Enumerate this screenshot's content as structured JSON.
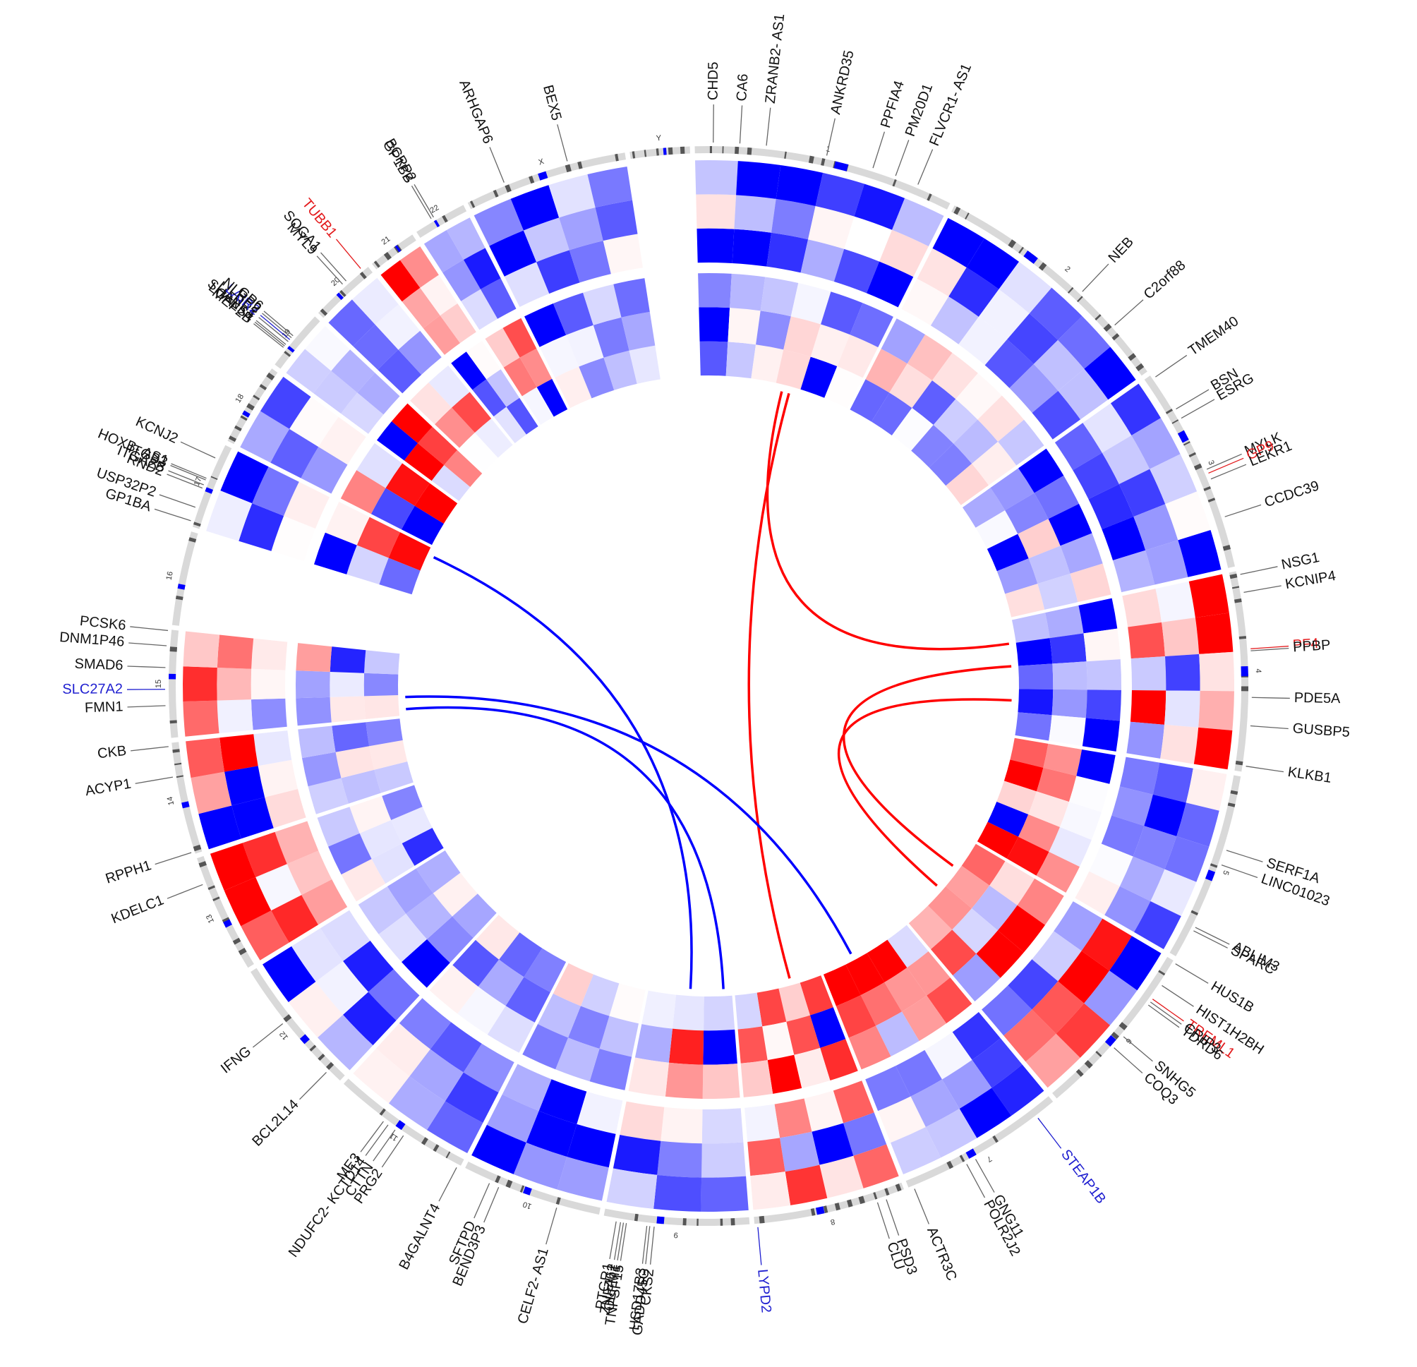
{
  "colors": {
    "up": "#ff0000",
    "down": "#0000ff",
    "neutral": "#ffffff",
    "label_default": "#111111",
    "label_up": "#e31a1c",
    "label_down": "#1f1fd0",
    "ideogram_band_light": "#d9d9d9",
    "ideogram_band_dark": "#555555",
    "ideogram_centromere": "#0000ff"
  },
  "chromosomes": [
    {
      "name": "1",
      "size": 249
    },
    {
      "name": "2",
      "size": 242
    },
    {
      "name": "3",
      "size": 198
    },
    {
      "name": "4",
      "size": 190
    },
    {
      "name": "5",
      "size": 181
    },
    {
      "name": "6",
      "size": 171
    },
    {
      "name": "7",
      "size": 159
    },
    {
      "name": "8",
      "size": 145
    },
    {
      "name": "9",
      "size": 138
    },
    {
      "name": "10",
      "size": 134
    },
    {
      "name": "11",
      "size": 135
    },
    {
      "name": "12",
      "size": 133
    },
    {
      "name": "13",
      "size": 114
    },
    {
      "name": "14",
      "size": 107
    },
    {
      "name": "15",
      "size": 102
    },
    {
      "name": "16",
      "size": 90
    },
    {
      "name": "17",
      "size": 83
    },
    {
      "name": "18",
      "size": 80
    },
    {
      "name": "19",
      "size": 59
    },
    {
      "name": "20",
      "size": 64
    },
    {
      "name": "21",
      "size": 47
    },
    {
      "name": "22",
      "size": 51
    },
    {
      "name": "X",
      "size": 156
    },
    {
      "name": "Y",
      "size": 57
    }
  ],
  "gene_labels": [
    {
      "text": "CHD5",
      "chr": "1",
      "pos": 0.07,
      "status": "none"
    },
    {
      "text": "CA6",
      "chr": "1",
      "pos": 0.17,
      "status": "none"
    },
    {
      "text": "ZRANB2- AS1",
      "chr": "1",
      "pos": 0.27,
      "status": "none"
    },
    {
      "text": "ANKRD35",
      "chr": "1",
      "pos": 0.5,
      "status": "none"
    },
    {
      "text": "PPFIA4",
      "chr": "1",
      "pos": 0.68,
      "status": "none"
    },
    {
      "text": "PM20D1",
      "chr": "1",
      "pos": 0.77,
      "status": "none"
    },
    {
      "text": "FLVCR1- AS1",
      "chr": "1",
      "pos": 0.86,
      "status": "none"
    },
    {
      "text": "NEB",
      "chr": "2",
      "pos": 0.6,
      "status": "none"
    },
    {
      "text": "C2orf88",
      "chr": "2",
      "pos": 0.78,
      "status": "none"
    },
    {
      "text": "TMEM40",
      "chr": "3",
      "pos": 0.02,
      "status": "none"
    },
    {
      "text": "BSN",
      "chr": "3",
      "pos": 0.2,
      "status": "none"
    },
    {
      "text": "ESRG",
      "chr": "3",
      "pos": 0.25,
      "status": "none"
    },
    {
      "text": "MYLK",
      "chr": "3",
      "pos": 0.52,
      "status": "none"
    },
    {
      "text": "GP9",
      "chr": "3",
      "pos": 0.54,
      "status": "up"
    },
    {
      "text": "LEKR1",
      "chr": "3",
      "pos": 0.57,
      "status": "none"
    },
    {
      "text": "CCDC39",
      "chr": "3",
      "pos": 0.76,
      "status": "none"
    },
    {
      "text": "NSG1",
      "chr": "4",
      "pos": 0.02,
      "status": "none"
    },
    {
      "text": "KCNIP4",
      "chr": "4",
      "pos": 0.11,
      "status": "none"
    },
    {
      "text": "PF4",
      "chr": "4",
      "pos": 0.39,
      "status": "up"
    },
    {
      "text": "PPBP",
      "chr": "4",
      "pos": 0.4,
      "status": "none"
    },
    {
      "text": "PDE5A",
      "chr": "4",
      "pos": 0.63,
      "status": "none"
    },
    {
      "text": "GUSBP5",
      "chr": "4",
      "pos": 0.77,
      "status": "none"
    },
    {
      "text": "KLKB1",
      "chr": "4",
      "pos": 0.97,
      "status": "none"
    },
    {
      "text": "SERF1A",
      "chr": "5",
      "pos": 0.39,
      "status": "none"
    },
    {
      "text": "LINC01023",
      "chr": "5",
      "pos": 0.47,
      "status": "none"
    },
    {
      "text": "ABLIM3",
      "chr": "5",
      "pos": 0.82,
      "status": "none"
    },
    {
      "text": "SPARC",
      "chr": "5",
      "pos": 0.84,
      "status": "none"
    },
    {
      "text": "HUS1B",
      "chr": "6",
      "pos": 0.01,
      "status": "none"
    },
    {
      "text": "HIST1H2BH",
      "chr": "6",
      "pos": 0.15,
      "status": "none"
    },
    {
      "text": "TREML1",
      "chr": "6",
      "pos": 0.24,
      "status": "up"
    },
    {
      "text": "CRIP3",
      "chr": "6",
      "pos": 0.26,
      "status": "none"
    },
    {
      "text": "TDRD6",
      "chr": "6",
      "pos": 0.28,
      "status": "none"
    },
    {
      "text": "SNHG5",
      "chr": "6",
      "pos": 0.5,
      "status": "none"
    },
    {
      "text": "COQ3",
      "chr": "6",
      "pos": 0.58,
      "status": "none"
    },
    {
      "text": "STEAP1B",
      "chr": "7",
      "pos": 0.13,
      "status": "down"
    },
    {
      "text": "GNG11",
      "chr": "7",
      "pos": 0.57,
      "status": "none"
    },
    {
      "text": "POLR2J2",
      "chr": "7",
      "pos": 0.63,
      "status": "none"
    },
    {
      "text": "ACTR3C",
      "chr": "7",
      "pos": 0.97,
      "status": "none"
    },
    {
      "text": "PSD3",
      "chr": "8",
      "pos": 0.13,
      "status": "none"
    },
    {
      "text": "CLU",
      "chr": "8",
      "pos": 0.19,
      "status": "none"
    },
    {
      "text": "LYPD2",
      "chr": "8",
      "pos": 0.98,
      "status": "down"
    },
    {
      "text": "CKS2",
      "chr": "9",
      "pos": 0.65,
      "status": "none"
    },
    {
      "text": "GADD45G",
      "chr": "9",
      "pos": 0.68,
      "status": "none"
    },
    {
      "text": "HSD17B3",
      "chr": "9",
      "pos": 0.7,
      "status": "none"
    },
    {
      "text": "TNFSF15",
      "chr": "9",
      "pos": 0.84,
      "status": "none"
    },
    {
      "text": "OLFM1",
      "chr": "9",
      "pos": 0.86,
      "status": "none"
    },
    {
      "text": "ZNF462",
      "chr": "9",
      "pos": 0.88,
      "status": "none"
    },
    {
      "text": "PTGR1",
      "chr": "9",
      "pos": 0.91,
      "status": "none"
    },
    {
      "text": "CELF2- AS1",
      "chr": "10",
      "pos": 0.3,
      "status": "none"
    },
    {
      "text": "BEND3P3",
      "chr": "10",
      "pos": 0.73,
      "status": "none"
    },
    {
      "text": "SFTPD",
      "chr": "10",
      "pos": 0.8,
      "status": "none"
    },
    {
      "text": "B4GALNT4",
      "chr": "11",
      "pos": 0.02,
      "status": "none"
    },
    {
      "text": "PRG2",
      "chr": "11",
      "pos": 0.45,
      "status": "none"
    },
    {
      "text": "CTTN",
      "chr": "11",
      "pos": 0.52,
      "status": "none"
    },
    {
      "text": "NDUFC2- KCTD14",
      "chr": "11",
      "pos": 0.58,
      "status": "none"
    },
    {
      "text": "ME3",
      "chr": "11",
      "pos": 0.62,
      "status": "none"
    },
    {
      "text": "BCL2L14",
      "chr": "12",
      "pos": 0.11,
      "status": "none"
    },
    {
      "text": "IFNG",
      "chr": "12",
      "pos": 0.57,
      "status": "none"
    },
    {
      "text": "KDELC1",
      "chr": "13",
      "pos": 0.78,
      "status": "none"
    },
    {
      "text": "RPPH1",
      "chr": "14",
      "pos": 0.02,
      "status": "none"
    },
    {
      "text": "ACYP1",
      "chr": "14",
      "pos": 0.7,
      "status": "none"
    },
    {
      "text": "CKB",
      "chr": "14",
      "pos": 0.97,
      "status": "none"
    },
    {
      "text": "FMN1",
      "chr": "15",
      "pos": 0.3,
      "status": "none"
    },
    {
      "text": "SLC27A2",
      "chr": "15",
      "pos": 0.45,
      "status": "down"
    },
    {
      "text": "SMAD6",
      "chr": "15",
      "pos": 0.65,
      "status": "none"
    },
    {
      "text": "DNM1P46",
      "chr": "15",
      "pos": 0.85,
      "status": "none"
    },
    {
      "text": "PCSK6",
      "chr": "15",
      "pos": 0.99,
      "status": "none"
    },
    {
      "text": "GP1BA",
      "chr": "17",
      "pos": 0.06,
      "status": "none"
    },
    {
      "text": "USP32P2",
      "chr": "17",
      "pos": 0.22,
      "status": "none"
    },
    {
      "text": "RND2",
      "chr": "17",
      "pos": 0.45,
      "status": "none"
    },
    {
      "text": "ITGA2B",
      "chr": "17",
      "pos": 0.49,
      "status": "none"
    },
    {
      "text": "ITGB3",
      "chr": "17",
      "pos": 0.55,
      "status": "none"
    },
    {
      "text": "HOXB- AS1",
      "chr": "17",
      "pos": 0.57,
      "status": "none"
    },
    {
      "text": "KCNJ2",
      "chr": "17",
      "pos": 0.82,
      "status": "none"
    },
    {
      "text": "MEF2B",
      "chr": "19",
      "pos": 0.3,
      "status": "none"
    },
    {
      "text": "LGALS4",
      "chr": "19",
      "pos": 0.33,
      "status": "none"
    },
    {
      "text": "SHANK1",
      "chr": "19",
      "pos": 0.36,
      "status": "none"
    },
    {
      "text": "LILRP2",
      "chr": "19",
      "pos": 0.42,
      "status": "none"
    },
    {
      "text": "LAIR2",
      "chr": "19",
      "pos": 0.46,
      "status": "down"
    },
    {
      "text": "NLRP2",
      "chr": "19",
      "pos": 0.5,
      "status": "none"
    },
    {
      "text": "GP6",
      "chr": "19",
      "pos": 0.54,
      "status": "none"
    },
    {
      "text": "MYL9",
      "chr": "20",
      "pos": 0.55,
      "status": "none"
    },
    {
      "text": "SOGA1",
      "chr": "20",
      "pos": 0.62,
      "status": "none"
    },
    {
      "text": "TUBB1",
      "chr": "20",
      "pos": 0.9,
      "status": "up"
    },
    {
      "text": "GP1BB",
      "chr": "22",
      "pos": 0.36,
      "status": "none"
    },
    {
      "text": "BCRP2",
      "chr": "22",
      "pos": 0.41,
      "status": "none"
    },
    {
      "text": "ARHGAP6",
      "chr": "X",
      "pos": 0.25,
      "status": "none"
    },
    {
      "text": "BEX5",
      "chr": "X",
      "pos": 0.65,
      "status": "none"
    }
  ],
  "heatmap_tracks": [
    {
      "name": "outer",
      "rows": 3
    },
    {
      "name": "inner",
      "rows": 3
    }
  ],
  "links": [
    {
      "from_chr": "1",
      "from_pos": 0.6,
      "to_chr": "8",
      "to_pos": 0.35,
      "type": "up"
    },
    {
      "from_chr": "1",
      "from_pos": 0.55,
      "to_chr": "4",
      "to_pos": 0.2,
      "type": "up"
    },
    {
      "from_chr": "4",
      "from_pos": 0.4,
      "to_chr": "6",
      "to_pos": 0.3,
      "type": "up"
    },
    {
      "from_chr": "4",
      "from_pos": 0.7,
      "to_chr": "6",
      "to_pos": 0.55,
      "type": "up"
    },
    {
      "from_chr": "17",
      "from_pos": 0.85,
      "to_chr": "9",
      "to_pos": 0.5,
      "type": "down"
    },
    {
      "from_chr": "15",
      "from_pos": 0.1,
      "to_chr": "9",
      "to_pos": 0.1,
      "type": "down"
    },
    {
      "from_chr": "15",
      "from_pos": 0.3,
      "to_chr": "7",
      "to_pos": 0.65,
      "type": "down"
    }
  ]
}
